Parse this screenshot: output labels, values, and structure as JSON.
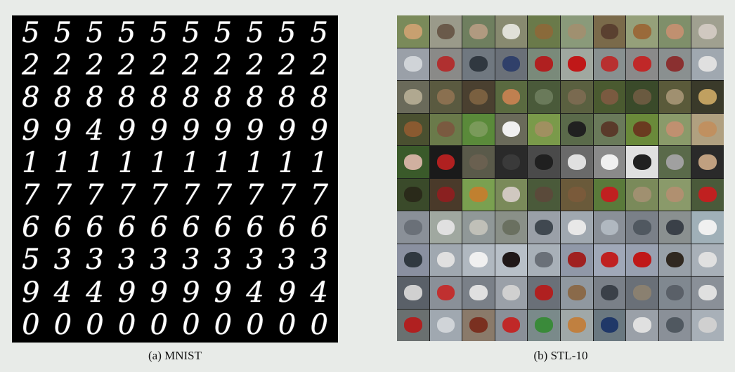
{
  "mnist": {
    "caption": "(a) MNIST",
    "rows": [
      [
        "5",
        "5",
        "5",
        "5",
        "5",
        "5",
        "5",
        "5",
        "5",
        "5"
      ],
      [
        "2",
        "2",
        "2",
        "2",
        "2",
        "2",
        "2",
        "2",
        "2",
        "2"
      ],
      [
        "8",
        "8",
        "8",
        "8",
        "8",
        "8",
        "8",
        "8",
        "8",
        "8"
      ],
      [
        "9",
        "9",
        "4",
        "9",
        "9",
        "9",
        "9",
        "9",
        "9",
        "9"
      ],
      [
        "1",
        "1",
        "1",
        "1",
        "1",
        "1",
        "1",
        "1",
        "1",
        "1"
      ],
      [
        "7",
        "7",
        "7",
        "7",
        "7",
        "7",
        "7",
        "7",
        "7",
        "7"
      ],
      [
        "6",
        "6",
        "6",
        "6",
        "6",
        "6",
        "6",
        "6",
        "6",
        "6"
      ],
      [
        "5",
        "3",
        "3",
        "3",
        "3",
        "3",
        "3",
        "3",
        "3",
        "3"
      ],
      [
        "9",
        "4",
        "4",
        "9",
        "9",
        "9",
        "9",
        "4",
        "9",
        "4"
      ],
      [
        "0",
        "0",
        "0",
        "0",
        "0",
        "0",
        "0",
        "0",
        "0",
        "0"
      ]
    ]
  },
  "stl": {
    "caption": "(b) STL-10",
    "rows": [
      {
        "subject": "dogs-and-animals",
        "bg": [
          "#7a8a5a",
          "#9a9a8a",
          "#6f7f5f",
          "#888a70",
          "#6a7a4a",
          "#8a9a7a",
          "#7a6a4a",
          "#95a07a",
          "#7f8f6a",
          "#a0a090"
        ],
        "fg": [
          "#c8a070",
          "#6a5a4a",
          "#b09a80",
          "#e0e0d8",
          "#8a6a3a",
          "#a09070",
          "#5a4030",
          "#9a6a3a",
          "#c09070",
          "#d0c8c0"
        ]
      },
      {
        "subject": "cars",
        "bg": [
          "#9aa0a8",
          "#8a8a88",
          "#707880",
          "#6a7078",
          "#7a8a7a",
          "#a0a8a0",
          "#889090",
          "#8a8a8a",
          "#8a9090",
          "#a0a8b0"
        ],
        "fg": [
          "#d0d4d8",
          "#b03030",
          "#303840",
          "#30406a",
          "#b02020",
          "#c01818",
          "#b83030",
          "#c02828",
          "#8a3030",
          "#e0e0e0"
        ]
      },
      {
        "subject": "cats-and-wildlife",
        "bg": [
          "#6a6a5a",
          "#5a5a40",
          "#4a4030",
          "#5a6a40",
          "#4a5a3a",
          "#5a6040",
          "#4a5a30",
          "#3a4a2a",
          "#5a5a3a",
          "#3a3a2a"
        ],
        "fg": [
          "#b0a890",
          "#8a7050",
          "#7a6040",
          "#c08050",
          "#6a7a5a",
          "#7a6a50",
          "#7a5a40",
          "#6a5a40",
          "#a09070",
          "#c0a060"
        ]
      },
      {
        "subject": "deer-and-horses",
        "bg": [
          "#4a5030",
          "#6a7a4a",
          "#5a8a3a",
          "#6a6a5a",
          "#7a9a4a",
          "#5a6a4a",
          "#6a7a5a",
          "#6a8a3a",
          "#8a9a6a",
          "#b0a080"
        ],
        "fg": [
          "#8a5a30",
          "#7a5a40",
          "#7a9a5a",
          "#f0f0f0",
          "#a09060",
          "#202020",
          "#5a3a2a",
          "#6a3a20",
          "#c09070",
          "#c09060"
        ]
      },
      {
        "subject": "dogs-and-monkeys",
        "bg": [
          "#3a5a2a",
          "#1a1a1a",
          "#5a5a4a",
          "#2a2a2a",
          "#4a4a4a",
          "#6a6a6a",
          "#8a8a8a",
          "#e0e0e0",
          "#5a6a4a",
          "#2a2a2a"
        ],
        "fg": [
          "#d0b0a0",
          "#b02020",
          "#6a6050",
          "#3a3a3a",
          "#202020",
          "#e0e0e0",
          "#f0f0f0",
          "#202020",
          "#a0a0a0",
          "#c0a080"
        ]
      },
      {
        "subject": "birds-and-dogs",
        "bg": [
          "#3a4a2a",
          "#4a3a2a",
          "#7aa050",
          "#7a8a5a",
          "#4a5a3a",
          "#6a5a3a",
          "#5a7a3a",
          "#7a8a5a",
          "#8a9a6a",
          "#4a5a3a"
        ],
        "fg": [
          "#2a2a1a",
          "#8a2020",
          "#c08030",
          "#d0c8c0",
          "#5a4a3a",
          "#7a5a3a",
          "#c02020",
          "#a09070",
          "#b09070",
          "#c02020"
        ]
      },
      {
        "subject": "ships",
        "bg": [
          "#8a9098",
          "#a0a8a0",
          "#909898",
          "#8a9088",
          "#9aa0a8",
          "#a0a8b0",
          "#8a9098",
          "#7a8088",
          "#8a9090",
          "#a0b0b8"
        ],
        "fg": [
          "#6a7078",
          "#e0e0e0",
          "#c0c0b8",
          "#6a7060",
          "#404850",
          "#e8e8e8",
          "#b0b8c0",
          "#505860",
          "#3a4048",
          "#f0f0f0"
        ]
      },
      {
        "subject": "airplanes",
        "bg": [
          "#8a90a0",
          "#a0a8b0",
          "#b0b8c0",
          "#b8c0c8",
          "#a8b0b8",
          "#9098a8",
          "#a0a8b8",
          "#98a0b0",
          "#98a0a8",
          "#a8b0b8"
        ],
        "fg": [
          "#303840",
          "#e0e0e0",
          "#f0f0f0",
          "#201818",
          "#6a7078",
          "#a02020",
          "#c02020",
          "#c01818",
          "#302820",
          "#e0e0e0"
        ]
      },
      {
        "subject": "ships-and-trucks",
        "bg": [
          "#5a6068",
          "#8a9098",
          "#7a8088",
          "#9aa0a8",
          "#6a7078",
          "#9098a0",
          "#7a8088",
          "#6a7078",
          "#808890",
          "#8a9098"
        ],
        "fg": [
          "#d0d0d0",
          "#c03030",
          "#e0e0e0",
          "#d0d0d0",
          "#b02020",
          "#8a6a4a",
          "#3a4048",
          "#8a8070",
          "#5a6068",
          "#e0e0e0"
        ]
      },
      {
        "subject": "trucks",
        "bg": [
          "#6a7070",
          "#a0a8b0",
          "#8a7a6a",
          "#8a9098",
          "#7a8a8a",
          "#a0a8a8",
          "#6a7880",
          "#9aa0a8",
          "#8a9098",
          "#a8b0b8"
        ],
        "fg": [
          "#b02020",
          "#d0d4d8",
          "#7a3020",
          "#c02828",
          "#3a8a3a",
          "#c08040",
          "#203868",
          "#e0e0e0",
          "#505860",
          "#d0d0d0"
        ]
      }
    ]
  }
}
